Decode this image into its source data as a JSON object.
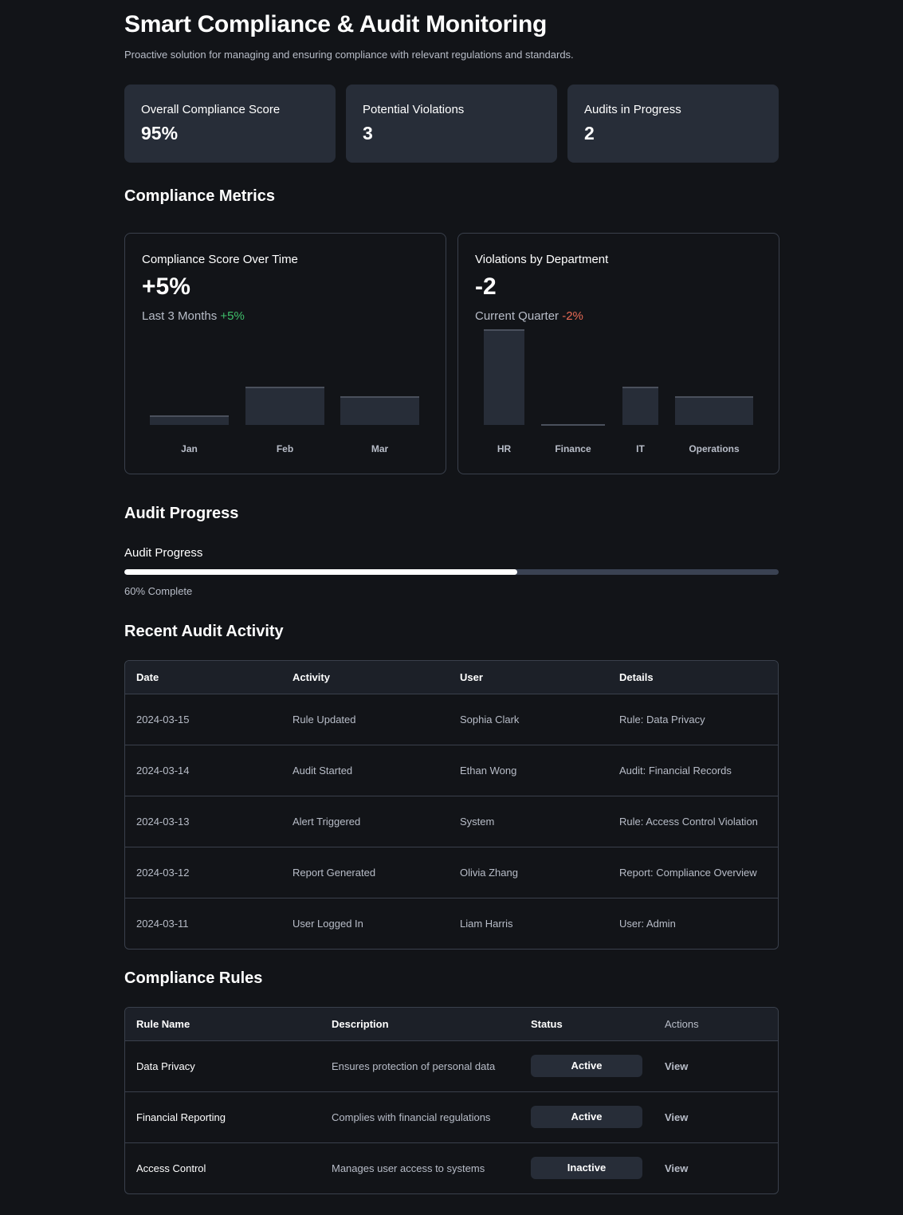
{
  "header": {
    "title": "Smart Compliance & Audit Monitoring",
    "subtitle": "Proactive solution for managing and ensuring compliance with relevant regulations and standards."
  },
  "stats": [
    {
      "label": "Overall Compliance Score",
      "value": "95%"
    },
    {
      "label": "Potential Violations",
      "value": "3"
    },
    {
      "label": "Audits in Progress",
      "value": "2"
    }
  ],
  "metrics_section": {
    "title": "Compliance Metrics"
  },
  "chart_data": [
    {
      "type": "bar",
      "title": "Compliance Score Over Time",
      "value": "+5%",
      "period": "Last 3 Months",
      "change": "+5%",
      "categories": [
        "Jan",
        "Feb",
        "Mar"
      ],
      "values": [
        10,
        40,
        30
      ],
      "ylim": [
        0,
        100
      ]
    },
    {
      "type": "bar",
      "title": "Violations by Department",
      "value": "-2",
      "period": "Current Quarter",
      "change": "-2%",
      "categories": [
        "HR",
        "Finance",
        "IT",
        "Operations"
      ],
      "values": [
        100,
        1,
        40,
        30
      ],
      "ylim": [
        0,
        100
      ]
    }
  ],
  "audit_progress": {
    "section_title": "Audit Progress",
    "label": "Audit Progress",
    "percent": 60,
    "text": "60% Complete"
  },
  "activity": {
    "title": "Recent Audit Activity",
    "columns": [
      "Date",
      "Activity",
      "User",
      "Details"
    ],
    "rows": [
      [
        "2024-03-15",
        "Rule Updated",
        "Sophia Clark",
        "Rule: Data Privacy"
      ],
      [
        "2024-03-14",
        "Audit Started",
        "Ethan Wong",
        "Audit: Financial Records"
      ],
      [
        "2024-03-13",
        "Alert Triggered",
        "System",
        "Rule: Access Control Violation"
      ],
      [
        "2024-03-12",
        "Report Generated",
        "Olivia Zhang",
        "Report: Compliance Overview"
      ],
      [
        "2024-03-11",
        "User Logged In",
        "Liam Harris",
        "User: Admin"
      ]
    ]
  },
  "rules": {
    "title": "Compliance Rules",
    "columns": [
      "Rule Name",
      "Description",
      "Status",
      "Actions"
    ],
    "rows": [
      {
        "name": "Data Privacy",
        "description": "Ensures protection of personal data",
        "status": "Active",
        "action": "View"
      },
      {
        "name": "Financial Reporting",
        "description": "Complies with financial regulations",
        "status": "Active",
        "action": "View"
      },
      {
        "name": "Access Control",
        "description": "Manages user access to systems",
        "status": "Inactive",
        "action": "View"
      }
    ]
  },
  "colors": {
    "positive": "#3fbf6a",
    "negative": "#e86a55",
    "card": "#272d38",
    "background": "#121418"
  }
}
